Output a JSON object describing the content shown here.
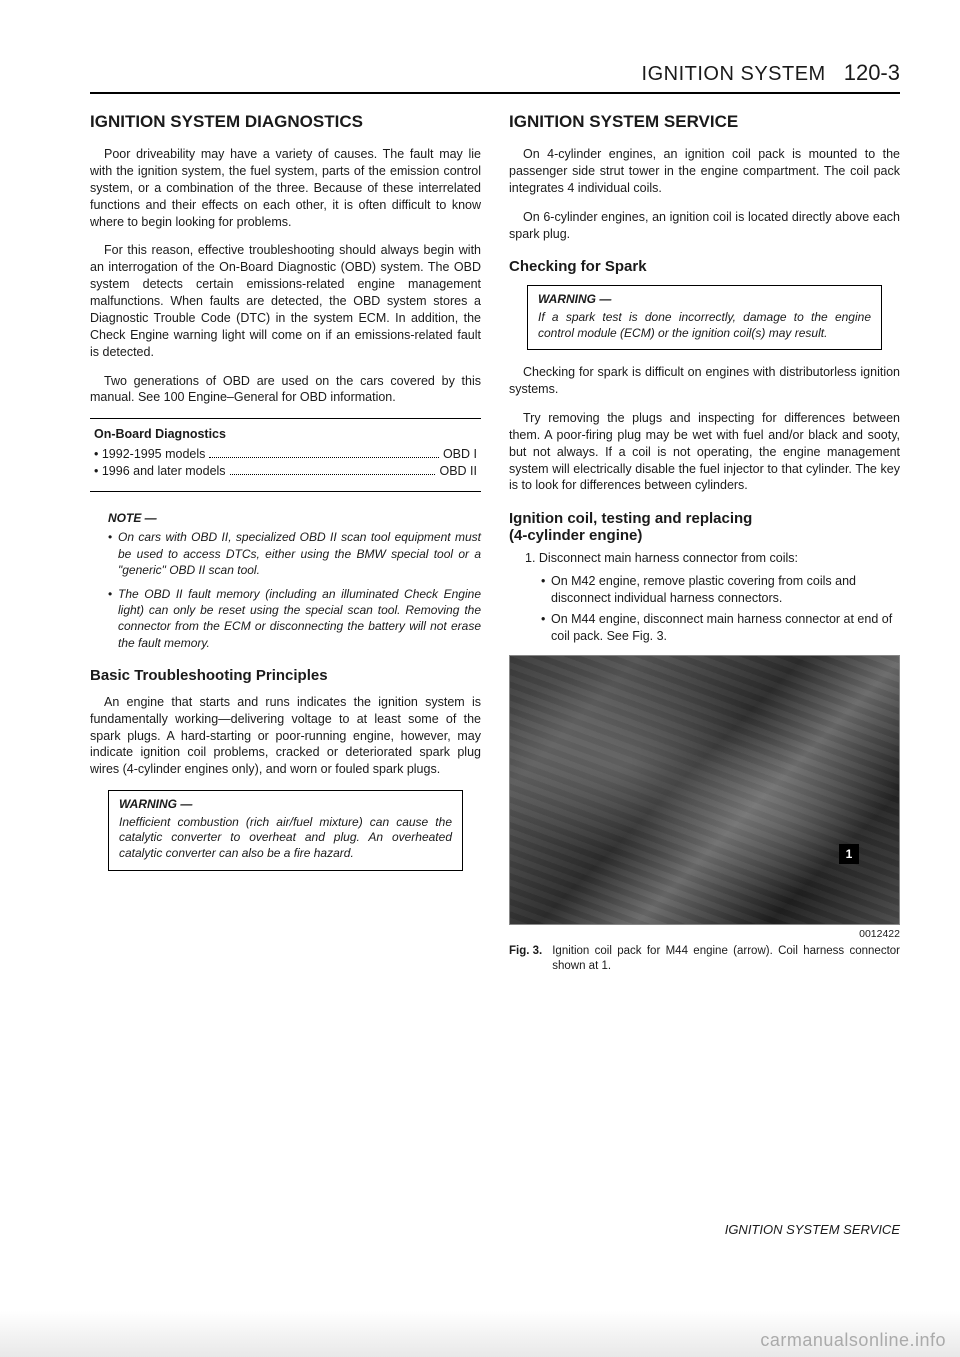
{
  "header": {
    "title": "IGNITION SYSTEM",
    "pagenum": "120-3"
  },
  "left": {
    "section_title": "IGNITION SYSTEM DIAGNOSTICS",
    "p1": "Poor driveability may have a variety of causes. The fault may lie with the ignition system, the fuel system, parts of the emission control system, or a combination of the three. Because of these interrelated functions and their effects on each other, it is often difficult to know where to begin looking for problems.",
    "p2": "For this reason, effective troubleshooting should always begin with an interrogation of the On-Board Diagnostic (OBD) system. The OBD system detects certain emissions-related engine management malfunctions. When faults are detected, the OBD system stores a Diagnostic Trouble Code (DTC) in the system ECM. In addition, the Check Engine warning light will come on if an emissions-related fault is detected.",
    "p3": "Two generations of OBD are used on the cars covered by this manual. See 100 Engine–General for OBD information.",
    "obd": {
      "title": "On-Board Diagnostics",
      "rows": [
        {
          "label": "• 1992-1995 models",
          "value": "OBD I"
        },
        {
          "label": "• 1996 and later models",
          "value": "OBD II"
        }
      ]
    },
    "note": {
      "head": "NOTE —",
      "items": [
        "On cars with OBD II, specialized OBD II scan tool equipment must be used to access DTCs, either using the BMW special tool or a \"generic\" OBD II scan tool.",
        "The OBD II fault memory (including an illuminated Check Engine light) can only be reset using the special scan tool. Removing the connector from the ECM or disconnecting the battery will not erase the fault memory."
      ]
    },
    "subhead": "Basic Troubleshooting Principles",
    "p4": "An engine that starts and runs indicates the ignition system is fundamentally working—delivering voltage to at least some of the spark plugs. A hard-starting or poor-running engine, however, may indicate ignition coil problems, cracked or deteriorated spark plug wires (4-cylinder engines only), and worn or fouled spark plugs.",
    "warn": {
      "head": "WARNING —",
      "body": "Inefficient combustion (rich air/fuel mixture) can cause the catalytic converter to overheat and plug. An overheated catalytic converter can also be a fire hazard."
    }
  },
  "right": {
    "section_title": "IGNITION SYSTEM SERVICE",
    "p1": "On 4-cylinder engines, an ignition coil pack is mounted to the passenger side strut tower in the engine compartment. The coil pack integrates 4 individual coils.",
    "p2": "On 6-cylinder engines, an ignition coil is located directly above each spark plug.",
    "subhead1": "Checking for Spark",
    "warn": {
      "head": "WARNING —",
      "body": "If a spark test is done incorrectly, damage to the engine control module (ECM) or the ignition coil(s) may result."
    },
    "p3": "Checking for spark is difficult on engines with distributorless ignition systems.",
    "p4": "Try removing the plugs and inspecting for differences between them. A poor-firing plug may be wet with fuel and/or black and sooty, but not always. If a coil is not operating, the engine management system will electrically disable the fuel injector to that cylinder. The key is to look for differences between cylinders.",
    "subhead2a": "Ignition coil, testing and replacing",
    "subhead2b": "(4-cylinder engine)",
    "step1": "1. Disconnect main harness connector from coils:",
    "sub1": "On M42 engine, remove plastic covering from coils and disconnect individual harness connectors.",
    "sub2": "On M44 engine, disconnect main harness connector at end of coil pack. See Fig. 3.",
    "fig": {
      "marker": "1",
      "id": "0012422",
      "label": "Fig. 3.",
      "caption": "Ignition coil pack for M44 engine (arrow). Coil harness connector shown at 1."
    }
  },
  "footer": "IGNITION SYSTEM SERVICE",
  "watermark": "carmanualsonline.info"
}
